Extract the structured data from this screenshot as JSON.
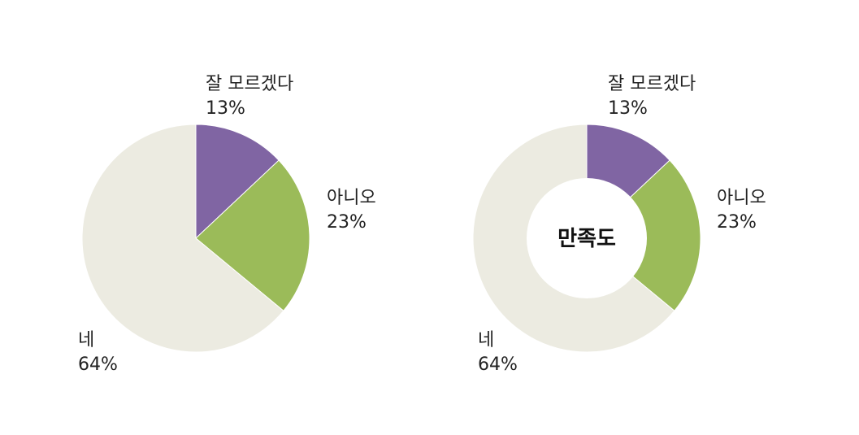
{
  "chart_data": [
    {
      "type": "pie",
      "categories": [
        "잘 모르겠다",
        "아니오",
        "네"
      ],
      "values": [
        13,
        23,
        64
      ],
      "value_labels": [
        "13%",
        "23%",
        "64%"
      ],
      "colors": [
        "#8065a3",
        "#9bbb59",
        "#ecebe1"
      ]
    },
    {
      "type": "pie",
      "variant": "donut",
      "center_label": "만족도",
      "categories": [
        "잘 모르겠다",
        "아니오",
        "네"
      ],
      "values": [
        13,
        23,
        64
      ],
      "value_labels": [
        "13%",
        "23%",
        "64%"
      ],
      "colors": [
        "#8065a3",
        "#9bbb59",
        "#ecebe1"
      ]
    }
  ]
}
